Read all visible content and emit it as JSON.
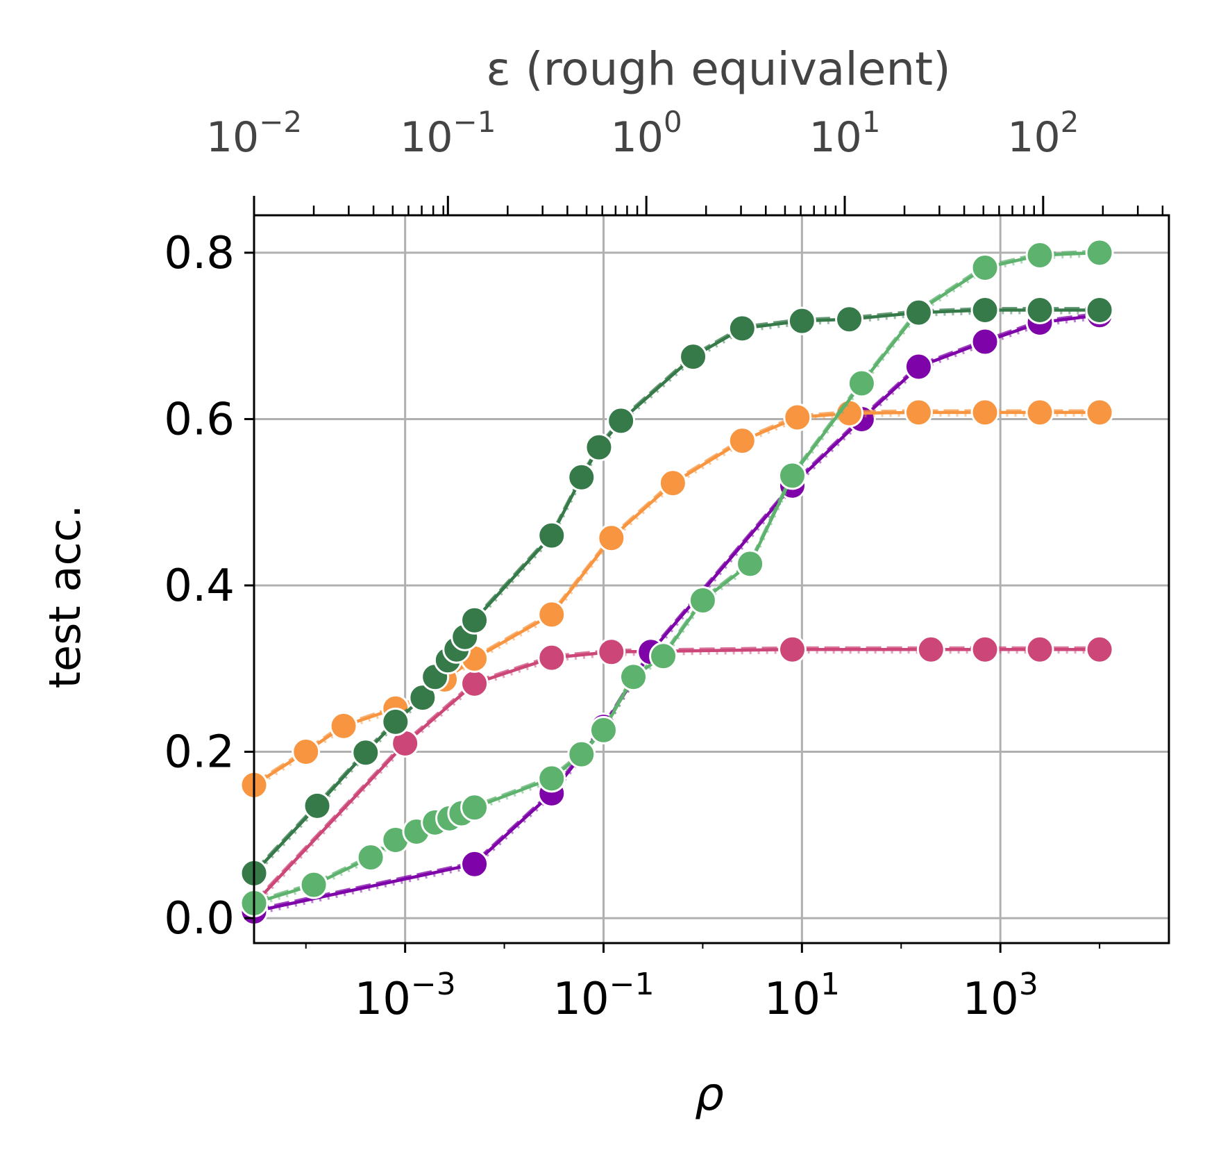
{
  "chart_data": {
    "type": "line",
    "xlabel": "ρ",
    "ylabel": "test acc.",
    "top_axis_label": "ε (rough equivalent)",
    "x_scale": "log",
    "xlim": [
      3e-05,
      50000
    ],
    "ylim": [
      -0.03,
      0.845
    ],
    "yticks": [
      0.0,
      0.2,
      0.4,
      0.6,
      0.8
    ],
    "ytick_labels": [
      "0.0",
      "0.2",
      "0.4",
      "0.6",
      "0.8"
    ],
    "xticks": [
      {
        "value": 0.001,
        "base": "10",
        "exp": "−3"
      },
      {
        "value": 0.1,
        "base": "10",
        "exp": "−1"
      },
      {
        "value": 10,
        "base": "10",
        "exp": "1"
      },
      {
        "value": 1000,
        "base": "10",
        "exp": "3"
      }
    ],
    "top_ticks": [
      {
        "value": 3e-05,
        "base": "10",
        "exp": "−2"
      },
      {
        "value": 0.0027,
        "base": "10",
        "exp": "−1"
      },
      {
        "value": 0.27,
        "base": "10",
        "exp": "0"
      },
      {
        "value": 27,
        "base": "10",
        "exp": "1"
      },
      {
        "value": 2700,
        "base": "10",
        "exp": "2"
      }
    ],
    "grid": true,
    "series": [
      {
        "color": "#cc4778",
        "x": [
          3e-05,
          0.001,
          0.005,
          0.03,
          0.12,
          8,
          200,
          700,
          2500,
          10000
        ],
        "y": [
          0.017,
          0.21,
          0.282,
          0.313,
          0.32,
          0.323,
          0.323,
          0.323,
          0.323,
          0.323
        ]
      },
      {
        "color": "#7e03a8",
        "x": [
          3e-05,
          0.005,
          0.03,
          0.1,
          0.3,
          8,
          40,
          150,
          700,
          2500,
          10000
        ],
        "y": [
          0.008,
          0.065,
          0.15,
          0.23,
          0.32,
          0.52,
          0.6,
          0.663,
          0.693,
          0.716,
          0.725
        ]
      },
      {
        "color": "#f89540",
        "x": [
          3e-05,
          0.0001,
          0.00024,
          0.0008,
          0.0015,
          0.0025,
          0.005,
          0.03,
          0.12,
          0.5,
          2.5,
          9,
          30,
          150,
          700,
          2500,
          10000
        ],
        "y": [
          0.16,
          0.2,
          0.231,
          0.252,
          0.265,
          0.287,
          0.312,
          0.365,
          0.457,
          0.523,
          0.574,
          0.602,
          0.607,
          0.608,
          0.608,
          0.608,
          0.608
        ]
      },
      {
        "color": "#5db26e",
        "x": [
          3e-05,
          0.00012,
          0.00045,
          0.0008,
          0.0013,
          0.002,
          0.0028,
          0.0037,
          0.005,
          0.03,
          0.06,
          0.1,
          0.2,
          0.4,
          1,
          3,
          8,
          40,
          150,
          700,
          2500,
          10000
        ],
        "y": [
          0.018,
          0.04,
          0.073,
          0.094,
          0.104,
          0.115,
          0.12,
          0.126,
          0.133,
          0.168,
          0.197,
          0.226,
          0.29,
          0.315,
          0.382,
          0.426,
          0.532,
          0.643,
          0.73,
          0.782,
          0.797,
          0.8
        ]
      },
      {
        "color": "#367a4a",
        "x": [
          3e-05,
          0.00013,
          0.0004,
          0.0008,
          0.0015,
          0.002,
          0.0027,
          0.0033,
          0.004,
          0.005,
          0.03,
          0.06,
          0.09,
          0.15,
          0.8,
          2.5,
          10,
          30,
          150,
          700,
          2500,
          10000
        ],
        "y": [
          0.054,
          0.135,
          0.199,
          0.236,
          0.265,
          0.29,
          0.31,
          0.323,
          0.338,
          0.358,
          0.46,
          0.53,
          0.566,
          0.598,
          0.675,
          0.709,
          0.718,
          0.72,
          0.728,
          0.731,
          0.731,
          0.731
        ]
      }
    ]
  }
}
